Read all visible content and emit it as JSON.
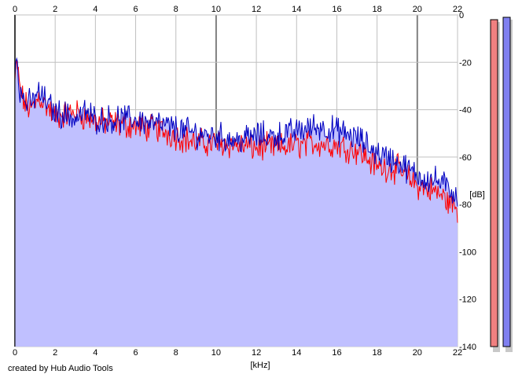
{
  "credit": "created by Hub Audio Tools",
  "colors": {
    "fill": "#c0c0ff",
    "channel_left": "#ff0000",
    "channel_right": "#0000c0",
    "grid": "#c0c0c0",
    "grid_major": "#808080",
    "meter_left": "#f08080",
    "meter_right": "#8080f0"
  },
  "chart_data": {
    "type": "area",
    "title": "",
    "xlabel": "[kHz]",
    "ylabel": "[dB]",
    "xlim": [
      0,
      22
    ],
    "ylim": [
      -140,
      0
    ],
    "x_ticks": [
      0,
      2,
      4,
      6,
      8,
      10,
      12,
      14,
      16,
      18,
      20,
      22
    ],
    "x_major_ticks": [
      0,
      10,
      20
    ],
    "y_ticks": [
      0,
      -20,
      -40,
      -60,
      -80,
      -100,
      -120,
      -140
    ],
    "grid": true,
    "x_ticks_top_and_bottom": true,
    "y_ticks_side": "right",
    "series": [
      {
        "x": [
          0,
          0.1,
          0.2,
          0.3,
          0.5,
          0.8,
          1.0,
          1.2,
          1.5,
          2.0,
          2.5,
          3.0,
          3.5,
          4.0,
          5.0,
          6.0,
          7.0,
          8.0,
          9.0,
          10.0,
          11.0,
          12.0,
          13.0,
          14.0,
          15.0,
          16.0,
          17.0,
          18.0,
          19.0,
          20.0,
          21.0,
          22.0
        ],
        "values": [
          -28,
          -20,
          -28,
          -33,
          -38,
          -40,
          -38,
          -34,
          -38,
          -43,
          -42,
          -41,
          -43,
          -45,
          -46,
          -47,
          -48,
          -51,
          -54,
          -54,
          -55,
          -56,
          -56,
          -55,
          -54,
          -55,
          -57,
          -64,
          -65,
          -72,
          -75,
          -82
        ]
      },
      {
        "x": [
          0,
          0.1,
          0.2,
          0.3,
          0.5,
          0.8,
          1.0,
          1.2,
          1.5,
          2.0,
          2.5,
          3.0,
          3.5,
          4.0,
          5.0,
          6.0,
          7.0,
          8.0,
          9.0,
          10.0,
          11.0,
          12.0,
          13.0,
          14.0,
          15.0,
          16.0,
          17.0,
          18.0,
          19.0,
          20.0,
          21.0,
          22.0
        ],
        "values": [
          -25,
          -15,
          -28,
          -34,
          -36,
          -38,
          -34,
          -33,
          -36,
          -41,
          -42,
          -44,
          -41,
          -44,
          -44,
          -44,
          -46,
          -48,
          -50,
          -51,
          -53,
          -51,
          -51,
          -49,
          -47,
          -49,
          -52,
          -58,
          -62,
          -68,
          -70,
          -76
        ]
      }
    ],
    "levels": [
      -2,
      -1
    ]
  }
}
